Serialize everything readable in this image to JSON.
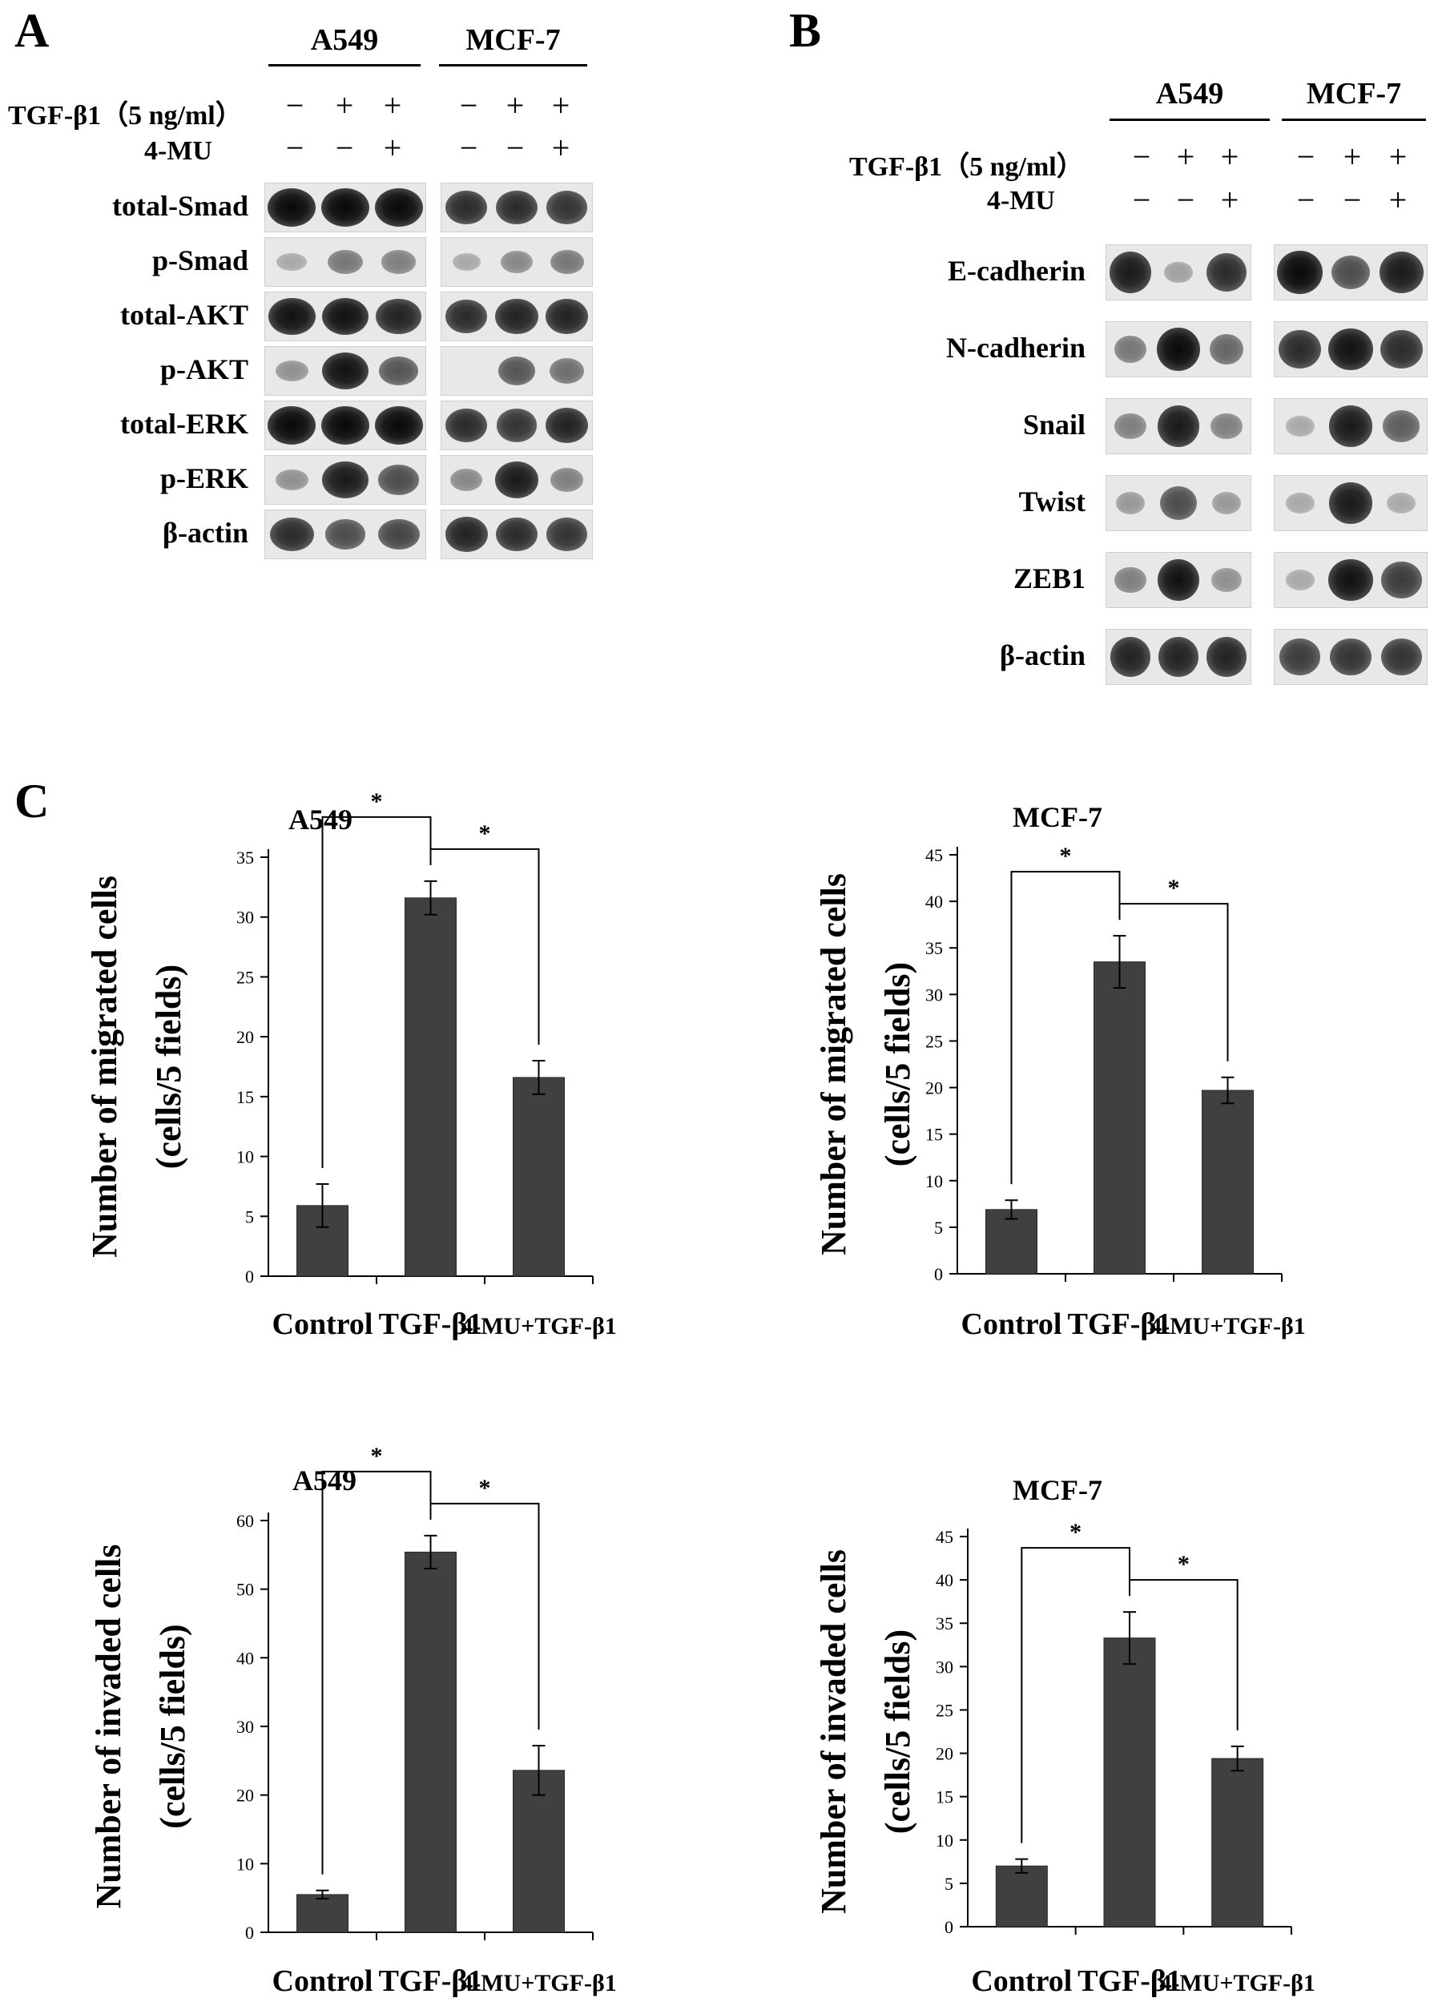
{
  "panels": {
    "a": "A",
    "b": "B",
    "c": "C"
  },
  "blot_a": {
    "cell_lines": [
      "A549",
      "MCF-7"
    ],
    "conditions": [
      {
        "label": "TGF-β1（5 ng/ml）",
        "signs": [
          "−",
          "+",
          "+",
          "−",
          "+",
          "+"
        ]
      },
      {
        "label": "4-MU",
        "signs": [
          "−",
          "−",
          "+",
          "−",
          "−",
          "+"
        ]
      }
    ],
    "proteins": [
      "total-Smad",
      "p-Smad",
      "total-AKT",
      "p-AKT",
      "total-ERK",
      "p-ERK",
      "β-actin"
    ]
  },
  "blot_b": {
    "cell_lines": [
      "A549",
      "MCF-7"
    ],
    "conditions": [
      {
        "label": "TGF-β1（5 ng/ml）",
        "signs": [
          "−",
          "+",
          "+",
          "−",
          "+",
          "+"
        ]
      },
      {
        "label": "4-MU",
        "signs": [
          "−",
          "−",
          "+",
          "−",
          "−",
          "+"
        ]
      }
    ],
    "proteins": [
      "E-cadherin",
      "N-cadherin",
      "Snail",
      "Twist",
      "ZEB1",
      "β-actin"
    ]
  },
  "chart_data": [
    {
      "type": "bar",
      "title": "A549",
      "ylabel": [
        "Number of migrated cells",
        "(cells/5 fields)"
      ],
      "categories": [
        "Control",
        "TGF-β1",
        "4-MU+TGF-β1"
      ],
      "values": [
        5.9,
        31.6,
        16.6
      ],
      "errors": [
        1.8,
        1.4,
        1.4
      ],
      "ylim": [
        0,
        35
      ],
      "yticks": [
        0,
        5,
        10,
        15,
        20,
        25,
        30,
        35
      ],
      "significance": [
        "*",
        "*"
      ]
    },
    {
      "type": "bar",
      "title": "MCF-7",
      "ylabel": [
        "Number of migrated cells",
        "(cells/5 fields)"
      ],
      "categories": [
        "Control",
        "TGF-β1",
        "4-MU+TGF-β1"
      ],
      "values": [
        6.9,
        33.5,
        19.7
      ],
      "errors": [
        1.0,
        2.8,
        1.4
      ],
      "ylim": [
        0,
        45
      ],
      "yticks": [
        0,
        5,
        10,
        15,
        20,
        25,
        30,
        35,
        40,
        45
      ],
      "significance": [
        "*",
        "*"
      ]
    },
    {
      "type": "bar",
      "title": "A549",
      "ylabel": [
        "Number of invaded cells",
        "(cells/5 fields)"
      ],
      "categories": [
        "Control",
        "TGF-β1",
        "4-MU+TGF-β1"
      ],
      "values": [
        5.5,
        55.4,
        23.6
      ],
      "errors": [
        0.6,
        2.4,
        3.6
      ],
      "ylim": [
        0,
        60
      ],
      "yticks": [
        0,
        10,
        20,
        30,
        40,
        50,
        60
      ],
      "significance": [
        "*",
        "*"
      ]
    },
    {
      "type": "bar",
      "title": "MCF-7",
      "ylabel": [
        "Number of invaded cells",
        "(cells/5 fields)"
      ],
      "categories": [
        "Control",
        "TGF-β1",
        "4-MU+TGF-β1"
      ],
      "values": [
        7.0,
        33.3,
        19.4
      ],
      "errors": [
        0.8,
        3.0,
        1.4
      ],
      "ylim": [
        0,
        45
      ],
      "yticks": [
        0,
        5,
        10,
        15,
        20,
        25,
        30,
        35,
        40,
        45
      ],
      "significance": [
        "*",
        "*"
      ]
    }
  ]
}
